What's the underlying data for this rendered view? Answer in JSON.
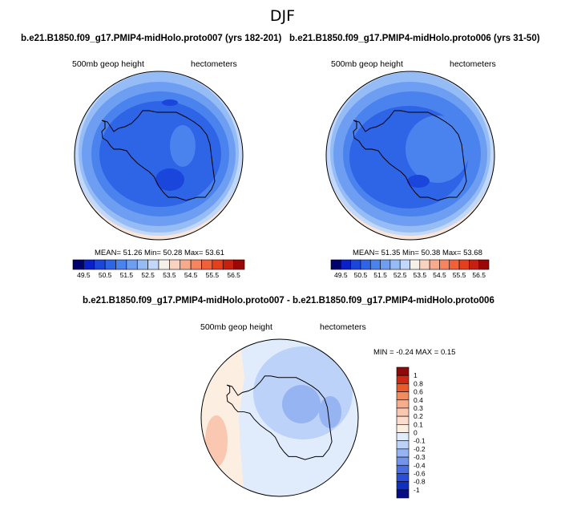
{
  "title": "DJF",
  "panels": [
    {
      "title": "b.e21.B1850.f09_g17.PMIP4-midHolo.proto007 (yrs 182-201)",
      "left_label": "500mb geop height",
      "right_label": "hectometers",
      "stats": "MEAN=  51.26  Min=  50.28  Max=  53.61"
    },
    {
      "title": "b.e21.B1850.f09_g17.PMIP4-midHolo.proto006 (yrs 31-50)",
      "left_label": "500mb geop height",
      "right_label": "hectometers",
      "stats": "MEAN=  51.35  Min=  50.38  Max=  53.68"
    }
  ],
  "colorbar": {
    "tick_labels": [
      "49.5",
      "50.5",
      "51.5",
      "52.5",
      "53.5",
      "54.5",
      "55.5",
      "56.5"
    ],
    "colors": [
      "#02026e",
      "#0a20c8",
      "#1a46dc",
      "#2e64e6",
      "#4a82ee",
      "#6e9ef2",
      "#96bcf6",
      "#c2d8fa",
      "#f6f0ea",
      "#fad2c0",
      "#f8aa8c",
      "#f6845e",
      "#f2603a",
      "#e4401e",
      "#c82010",
      "#9c0606"
    ]
  },
  "diff_panel": {
    "title": "b.e21.B1850.f09_g17.PMIP4-midHolo.proto007 - b.e21.B1850.f09_g17.PMIP4-midHolo.proto006",
    "left_label": "500mb geop height",
    "right_label": "hectometers",
    "stats": "MIN =  -0.24  MAX =   0.15",
    "colorbar_ticks": [
      "1",
      "0.8",
      "0.6",
      "0.4",
      "0.3",
      "0.2",
      "0.1",
      "0",
      "-0.1",
      "-0.2",
      "-0.3",
      "-0.4",
      "-0.6",
      "-0.8",
      "-1"
    ],
    "colorbar_colors": [
      "#8c0a0a",
      "#cc2a12",
      "#ea5a2a",
      "#f58a5e",
      "#f8ac8c",
      "#fac8b0",
      "#fcdccc",
      "#fdeee2",
      "#e0ecfc",
      "#bcd2f8",
      "#96b4f2",
      "#7294ea",
      "#4a6ee0",
      "#2a4ed6",
      "#1030c0",
      "#060c84"
    ]
  }
}
